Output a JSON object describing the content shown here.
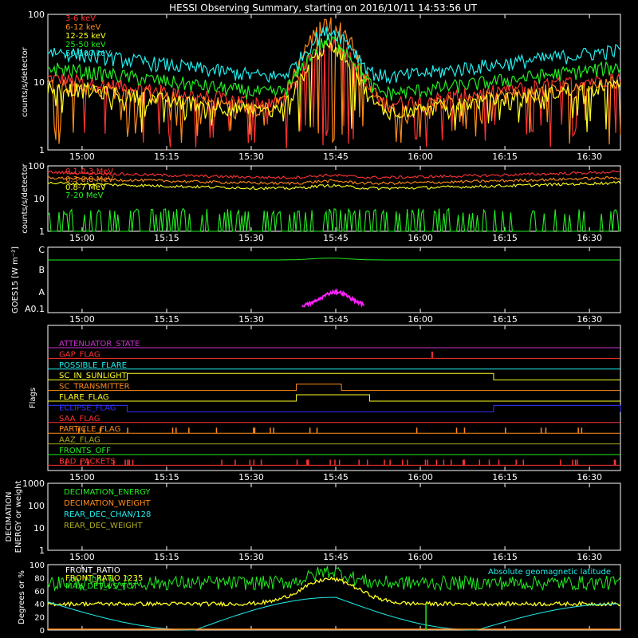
{
  "title": "HESSI Observing Summary, starting on 2016/10/11 14:53:56 UT",
  "time_ticks": [
    "15:00",
    "15:15",
    "15:30",
    "15:45",
    "16:00",
    "16:15",
    "16:30"
  ],
  "chart_data": [
    {
      "type": "line",
      "panel": "hxr",
      "ylabel": "counts/s/detector",
      "ylog": true,
      "ylim": [
        1,
        100
      ],
      "yticks": [
        "1",
        "10",
        "100"
      ],
      "legend_placement": "top-left",
      "series": [
        {
          "name": "3-6 keV",
          "color": "#ff3333",
          "base": 12,
          "peak": 35,
          "floor": 1.5
        },
        {
          "name": "6-12 keV",
          "color": "#ff8c1a",
          "base": 10,
          "peak": 70,
          "floor": 2
        },
        {
          "name": "12-25 keV",
          "color": "#ffff22",
          "base": 9,
          "peak": 30,
          "floor": 3
        },
        {
          "name": "25-50 keV",
          "color": "#22ee22",
          "base": 17,
          "peak": 35,
          "floor": 8
        },
        {
          "name": "50-100 keV",
          "color": "#22eeee",
          "base": 30,
          "peak": 45,
          "floor": 15
        }
      ]
    },
    {
      "type": "line",
      "panel": "gamma",
      "ylabel": "counts/s/detector",
      "ylog": true,
      "ylim": [
        1,
        100
      ],
      "yticks": [
        "1",
        "10",
        "100"
      ],
      "legend_placement": "top-left",
      "series": [
        {
          "name": "0.1-0.3 MeV",
          "color": "#ff3333",
          "base": 60,
          "peak": 90
        },
        {
          "name": "0.3-0.8 MeV",
          "color": "#ff8c1a",
          "base": 40,
          "peak": 60
        },
        {
          "name": "0.8-7 MeV",
          "color": "#ffff22",
          "base": 28,
          "peak": 45
        },
        {
          "name": "7-20 MeV",
          "color": "#22ee22",
          "base": 1.5,
          "peak": 2
        }
      ]
    },
    {
      "type": "line",
      "panel": "goes",
      "ylabel": "GOES15 [W m⁻²]",
      "yticks": [
        "A0.1",
        "A",
        "B",
        "C"
      ],
      "series": [
        {
          "name": "GOES long",
          "color": "#22ee22",
          "level": 0.87
        },
        {
          "name": "GOES short",
          "color": "#ff22ff",
          "start": "15:39",
          "end": "15:50",
          "level": 0.3
        }
      ]
    },
    {
      "type": "table",
      "panel": "flags",
      "ylabel": "Flags",
      "flags": [
        {
          "name": "ATTENUATOR_STATE",
          "color": "#cc33cc"
        },
        {
          "name": "GAP_FLAG",
          "color": "#ff3333"
        },
        {
          "name": "POSSIBLE_FLARE",
          "color": "#22eeee"
        },
        {
          "name": "SC_IN_SUNLIGHT",
          "color": "#ffff22"
        },
        {
          "name": "SC_TRANSMITTER",
          "color": "#ff8c1a"
        },
        {
          "name": "FLARE_FLAG",
          "color": "#ffff22"
        },
        {
          "name": "ECLIPSE_FLAG",
          "color": "#3333ff"
        },
        {
          "name": "SAA_FLAG",
          "color": "#ff3333"
        },
        {
          "name": "PARTICLE_FLAG",
          "color": "#ff8c1a"
        },
        {
          "name": "AAZ_FLAG",
          "color": "#aaaa22"
        },
        {
          "name": "FRONTS_OFF",
          "color": "#22ee22"
        },
        {
          "name": "BAD_PACKETS",
          "color": "#ff3333"
        }
      ]
    },
    {
      "type": "line",
      "panel": "decimation",
      "ylabel": "DECIMATION ENERGY or weight",
      "ylog": true,
      "ylim": [
        1,
        1000
      ],
      "yticks": [
        "1",
        "10",
        "100",
        "1000"
      ],
      "legend_placement": "top-left",
      "series": [
        {
          "name": "DECIMATION_ENERGY",
          "color": "#22ee22"
        },
        {
          "name": "DECIMATION_WEIGHT",
          "color": "#ff8c1a"
        },
        {
          "name": "REAR_DEC_CHAN/128",
          "color": "#22eeee"
        },
        {
          "name": "REAR_DEC_WEIGHT",
          "color": "#aaaa22"
        }
      ]
    },
    {
      "type": "line",
      "panel": "ratio",
      "ylabel": "Degrees or %",
      "ylim": [
        0,
        100
      ],
      "yticks": [
        "0",
        "20",
        "40",
        "60",
        "80",
        "100"
      ],
      "legend_placement": "top-left",
      "series": [
        {
          "name": "FRONT_RATIO",
          "color": "#ffffff"
        },
        {
          "name": "FRONT_RATIO 1235",
          "color": "#ffff22"
        },
        {
          "name": "MAX_DET_VS_TOT",
          "color": "#22ee22"
        }
      ],
      "annotation": {
        "text": "Absolute geomagnetic latitude",
        "color": "#22eeee"
      }
    }
  ]
}
